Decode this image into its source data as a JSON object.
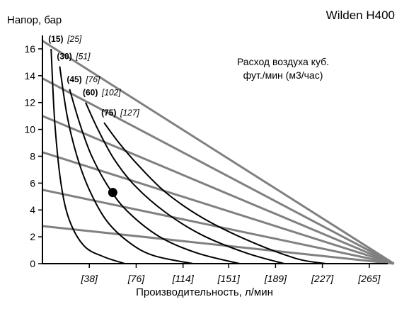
{
  "chart": {
    "model": "Wilden H400",
    "ylabel": "Напор, бар",
    "xlabel": "Производительность, л/мин",
    "note_line1": "Расход воздуха куб.",
    "note_line2": "фут./мин (м3/час)"
  },
  "chart_data": {
    "type": "line",
    "title": "Wilden H400",
    "xlabel": "Производительность, л/мин",
    "ylabel": "Напор, бар",
    "xlim": [
      0,
      280
    ],
    "ylim": [
      0,
      17
    ],
    "x_ticks": [
      "[38]",
      "[76]",
      "[114]",
      "[151]",
      "[189]",
      "[227]",
      "[265]"
    ],
    "x_tick_values": [
      38,
      76,
      114,
      151,
      189,
      227,
      265
    ],
    "y_ticks": [
      0,
      2,
      4,
      6,
      8,
      10,
      12,
      14,
      16
    ],
    "grid": false,
    "performance_curves": [
      {
        "label_bold": "(15)",
        "label_italic": "[25]",
        "points": [
          [
            7,
            16.0
          ],
          [
            10,
            10.5
          ],
          [
            15,
            6.0
          ],
          [
            22,
            3.2
          ],
          [
            34,
            1.3
          ],
          [
            50,
            0.5
          ],
          [
            67,
            0.0
          ]
        ]
      },
      {
        "label_bold": "(30)",
        "label_italic": "[51]",
        "points": [
          [
            14,
            14.7
          ],
          [
            20,
            11.0
          ],
          [
            28,
            8.0
          ],
          [
            38,
            5.5
          ],
          [
            52,
            3.2
          ],
          [
            70,
            1.6
          ],
          [
            90,
            0.6
          ],
          [
            122,
            0.0
          ]
        ]
      },
      {
        "label_bold": "(45)",
        "label_italic": "[76]",
        "points": [
          [
            22,
            13.0
          ],
          [
            30,
            10.5
          ],
          [
            40,
            8.0
          ],
          [
            55,
            5.5
          ],
          [
            70,
            3.8
          ],
          [
            95,
            2.0
          ],
          [
            125,
            0.8
          ],
          [
            160,
            0.0
          ]
        ]
      },
      {
        "label_bold": "(60)",
        "label_italic": "[102]",
        "points": [
          [
            35,
            12.0
          ],
          [
            45,
            10.0
          ],
          [
            58,
            7.8
          ],
          [
            75,
            5.8
          ],
          [
            100,
            3.8
          ],
          [
            130,
            2.1
          ],
          [
            165,
            0.8
          ],
          [
            196,
            0.0
          ]
        ]
      },
      {
        "label_bold": "(75)",
        "label_italic": "[127]",
        "points": [
          [
            50,
            10.5
          ],
          [
            62,
            9.0
          ],
          [
            78,
            7.3
          ],
          [
            100,
            5.3
          ],
          [
            130,
            3.4
          ],
          [
            165,
            1.8
          ],
          [
            205,
            0.4
          ],
          [
            230,
            0.0
          ]
        ]
      }
    ],
    "efficiency_lines": [
      {
        "points": [
          [
            0,
            16.6
          ],
          [
            285,
            0.0
          ]
        ]
      },
      {
        "points": [
          [
            0,
            13.8
          ],
          [
            285,
            0.0
          ]
        ]
      },
      {
        "points": [
          [
            0,
            11.0
          ],
          [
            285,
            0.0
          ]
        ]
      },
      {
        "points": [
          [
            0,
            8.3
          ],
          [
            285,
            0.0
          ]
        ]
      },
      {
        "points": [
          [
            0,
            5.5
          ],
          [
            285,
            0.0
          ]
        ]
      },
      {
        "points": [
          [
            0,
            2.8
          ],
          [
            285,
            0.0
          ]
        ]
      }
    ],
    "marker": {
      "x": 57,
      "y": 5.3
    }
  }
}
